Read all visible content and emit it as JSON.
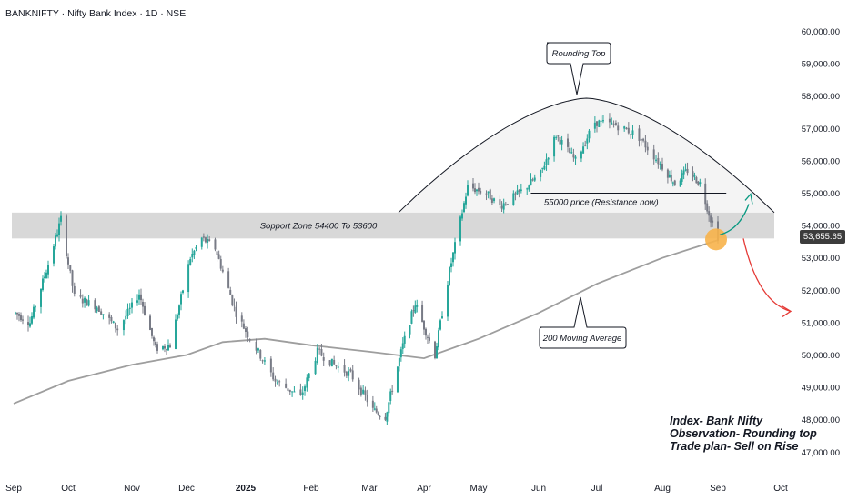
{
  "header": {
    "symbol_line": "BANKNIFTY · Nifty Bank Index · 1D · NSE"
  },
  "colors": {
    "up_candle": "#26a69a",
    "down_candle": "#787b86",
    "ma_line": "#9e9e9e",
    "zone_fill": "#d1d1d1",
    "arc_line": "#131722",
    "arrow_up": "#089981",
    "arrow_down": "#e53935",
    "circle": "#f7b24a"
  },
  "chart_data": {
    "type": "candlestick",
    "title": "BANKNIFTY · Nifty Bank Index · 1D · NSE",
    "y_axis_ticks": [
      "60,000.00",
      "59,000.00",
      "58,000.00",
      "57,000.00",
      "56,000.00",
      "55,000.00",
      "54,000.00",
      "53,000.00",
      "52,000.00",
      "51,000.00",
      "50,000.00",
      "49,000.00",
      "48,000.00",
      "47,000.00"
    ],
    "ylim": [
      46700,
      60350
    ],
    "x_axis_ticks": [
      {
        "label": "Sep",
        "bold": false
      },
      {
        "label": "Oct",
        "bold": false
      },
      {
        "label": "Nov",
        "bold": false
      },
      {
        "label": "Dec",
        "bold": false
      },
      {
        "label": "2025",
        "bold": true
      },
      {
        "label": "Feb",
        "bold": false
      },
      {
        "label": "Mar",
        "bold": false
      },
      {
        "label": "Apr",
        "bold": false
      },
      {
        "label": "May",
        "bold": false
      },
      {
        "label": "Jun",
        "bold": false
      },
      {
        "label": "Jul",
        "bold": false
      },
      {
        "label": "Aug",
        "bold": false
      },
      {
        "label": "Sep",
        "bold": false
      },
      {
        "label": "Oct",
        "bold": false
      }
    ],
    "last_price_label": "53,655.65",
    "last_price": 53655.65,
    "price_path": [
      [
        "2024-09-02",
        51300
      ],
      [
        "2024-09-10",
        51000
      ],
      [
        "2024-09-20",
        52800
      ],
      [
        "2024-09-27",
        54200
      ],
      [
        "2024-10-04",
        51800
      ],
      [
        "2024-10-15",
        51500
      ],
      [
        "2024-10-25",
        50800
      ],
      [
        "2024-11-05",
        51900
      ],
      [
        "2024-11-14",
        50200
      ],
      [
        "2024-11-22",
        50300
      ],
      [
        "2024-12-03",
        53000
      ],
      [
        "2024-12-09",
        53600
      ],
      [
        "2024-12-16",
        53300
      ],
      [
        "2024-12-27",
        51300
      ],
      [
        "2025-01-06",
        50200
      ],
      [
        "2025-01-15",
        49200
      ],
      [
        "2025-01-27",
        48700
      ],
      [
        "2025-02-04",
        50100
      ],
      [
        "2025-02-12",
        49700
      ],
      [
        "2025-02-20",
        49400
      ],
      [
        "2025-03-03",
        48300
      ],
      [
        "2025-03-10",
        48100
      ],
      [
        "2025-03-20",
        50300
      ],
      [
        "2025-03-27",
        51600
      ],
      [
        "2025-04-07",
        50000
      ],
      [
        "2025-04-15",
        52600
      ],
      [
        "2025-04-25",
        55200
      ],
      [
        "2025-05-05",
        55000
      ],
      [
        "2025-05-12",
        54600
      ],
      [
        "2025-05-22",
        55000
      ],
      [
        "2025-06-02",
        55600
      ],
      [
        "2025-06-10",
        56800
      ],
      [
        "2025-06-20",
        56000
      ],
      [
        "2025-06-30",
        57200
      ],
      [
        "2025-07-10",
        57100
      ],
      [
        "2025-07-20",
        56800
      ],
      [
        "2025-07-31",
        55900
      ],
      [
        "2025-08-08",
        55300
      ],
      [
        "2025-08-15",
        55700
      ],
      [
        "2025-08-22",
        55300
      ],
      [
        "2025-08-28",
        54200
      ],
      [
        "2025-09-01",
        53655
      ]
    ],
    "moving_average": {
      "name": "200 Moving Average",
      "points": [
        [
          "2024-09-01",
          48500
        ],
        [
          "2024-10-01",
          49200
        ],
        [
          "2024-11-01",
          49700
        ],
        [
          "2024-12-01",
          50000
        ],
        [
          "2024-12-20",
          50400
        ],
        [
          "2025-01-10",
          50500
        ],
        [
          "2025-02-01",
          50300
        ],
        [
          "2025-03-01",
          50100
        ],
        [
          "2025-04-01",
          49900
        ],
        [
          "2025-05-01",
          50500
        ],
        [
          "2025-06-01",
          51300
        ],
        [
          "2025-07-01",
          52200
        ],
        [
          "2025-08-01",
          53000
        ],
        [
          "2025-09-01",
          53550
        ]
      ]
    },
    "support_zone": {
      "label": "Sopport Zone 54400 To 53600",
      "low": 53600,
      "high": 54400
    },
    "resistance_line": {
      "label": "55000 price (Resistance now)",
      "value": 55000,
      "x_start": "2025-05-28",
      "x_end": "2025-09-05"
    },
    "annotations": [
      {
        "text": "Rounding Top"
      },
      {
        "text": "200 Moving Average"
      }
    ]
  },
  "notes": {
    "line1": "Index- Bank Nifty",
    "line2": "Observation- Rounding top",
    "line3": "Trade plan- Sell on Rise"
  }
}
